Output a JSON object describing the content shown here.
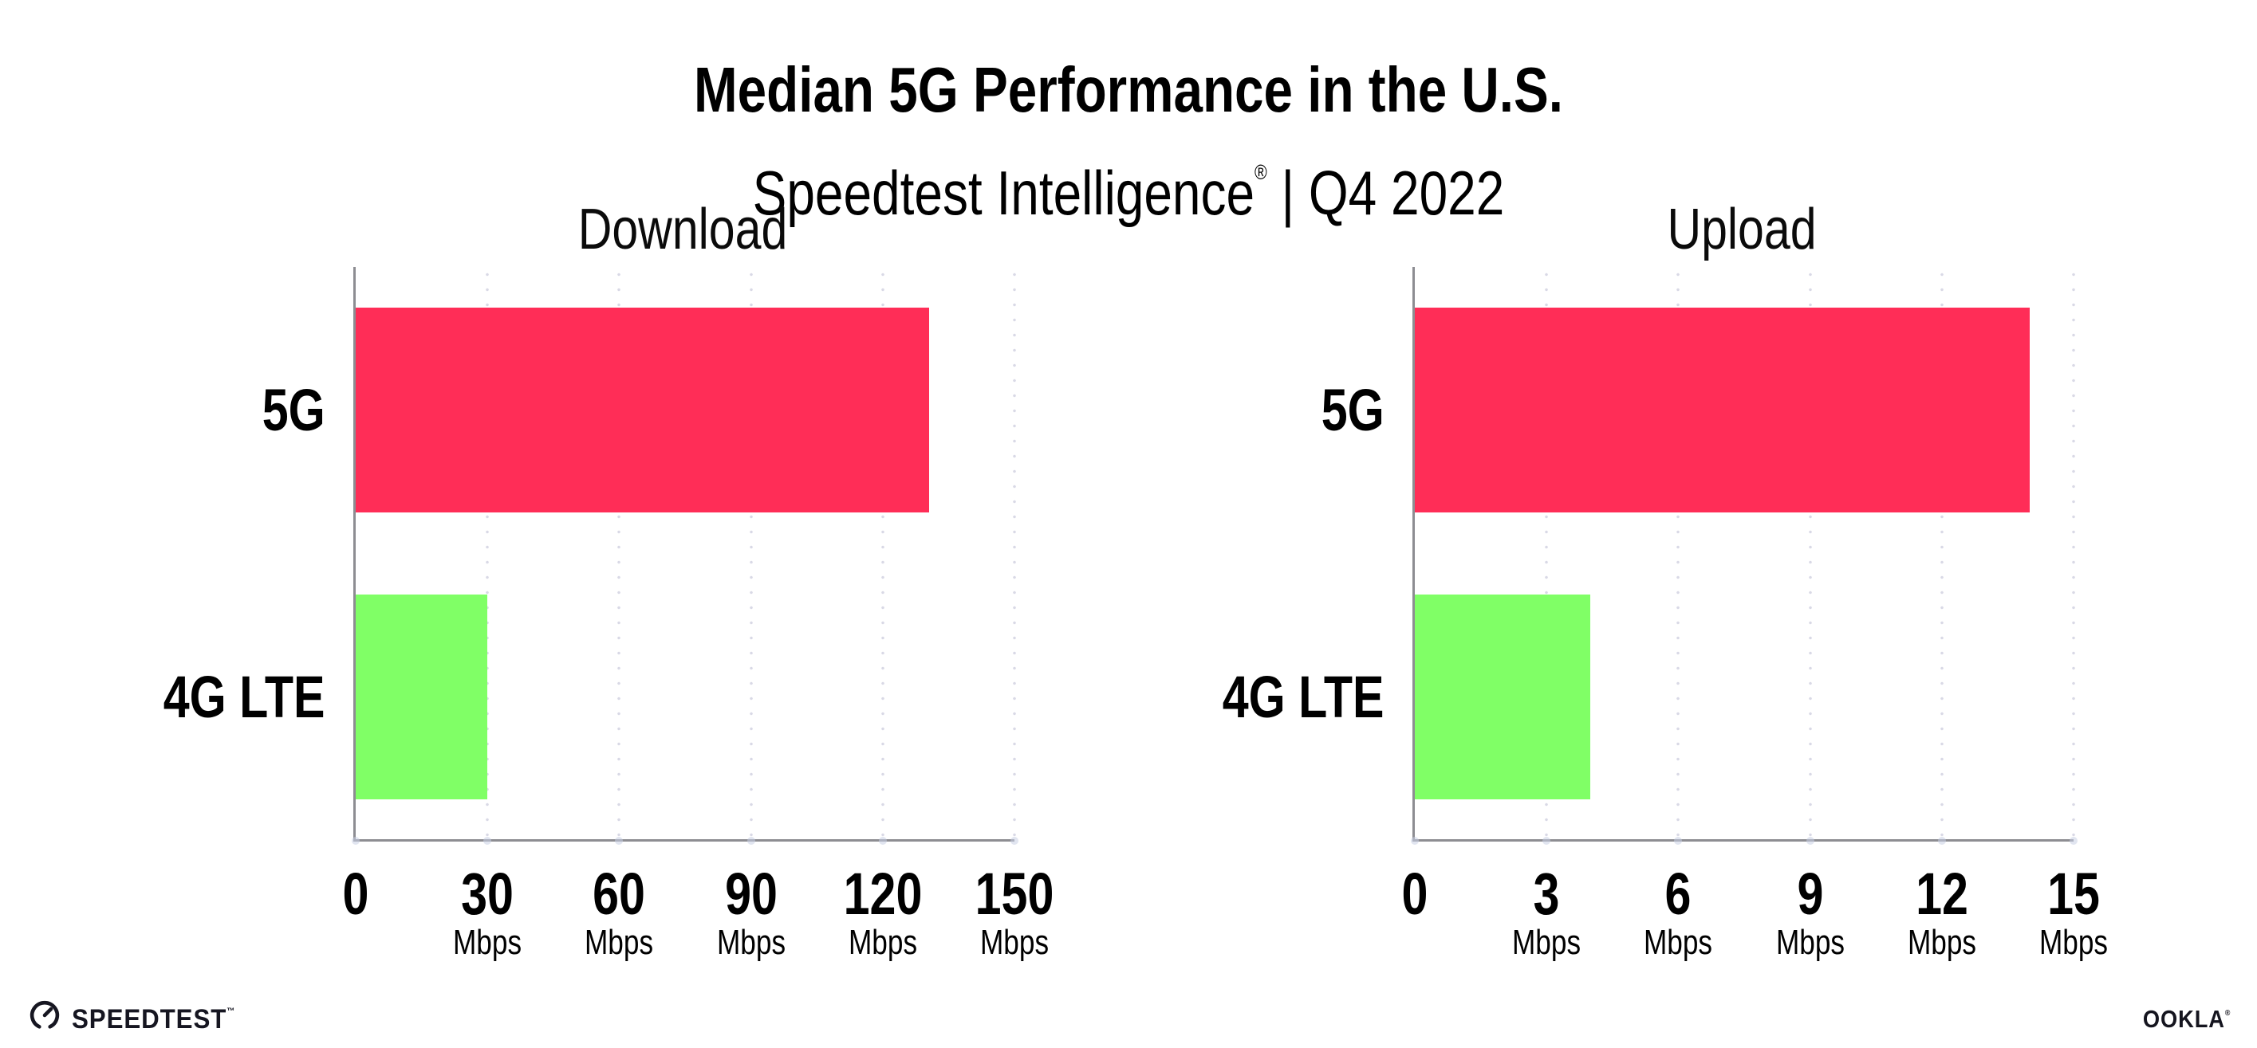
{
  "header": {
    "title": "Median 5G Performance in the U.S.",
    "subtitle_brand": "Speedtest Intelligence",
    "subtitle_reg": "®",
    "subtitle_rest": " | Q4 2022"
  },
  "chart_data": [
    {
      "type": "bar",
      "orientation": "horizontal",
      "title": "Download",
      "categories": [
        "5G",
        "4G LTE"
      ],
      "values": [
        130.5,
        30
      ],
      "unit": "Mbps",
      "xlim": [
        0,
        150
      ],
      "ticks": [
        0,
        30,
        60,
        90,
        120,
        150
      ],
      "tick_unit_label": "Mbps",
      "unit_shown_on_zero": false,
      "bar_colors": [
        "#FF2D57",
        "#80FF66"
      ],
      "grid": "vertical-dotted",
      "legend": "none"
    },
    {
      "type": "bar",
      "orientation": "horizontal",
      "title": "Upload",
      "categories": [
        "5G",
        "4G LTE"
      ],
      "values": [
        14,
        4
      ],
      "unit": "Mbps",
      "xlim": [
        0,
        15
      ],
      "ticks": [
        0,
        3,
        6,
        9,
        12,
        15
      ],
      "tick_unit_label": "Mbps",
      "unit_shown_on_zero": false,
      "bar_colors": [
        "#FF2D57",
        "#80FF66"
      ],
      "grid": "vertical-dotted",
      "legend": "none"
    }
  ],
  "footer": {
    "speedtest_label": "SPEEDTEST",
    "speedtest_mark": "™",
    "ookla_label": "OOKLA",
    "ookla_mark": "®"
  },
  "colors": {
    "bar_5g": "#FF2D57",
    "bar_4g_lte": "#80FF66",
    "axis_line": "#8D8D92",
    "gridline_dot": "#D9D9E6",
    "axis_tick_dot": "#C9CFE4",
    "text": "#0B0B0B",
    "background": "#FFFFFF"
  }
}
